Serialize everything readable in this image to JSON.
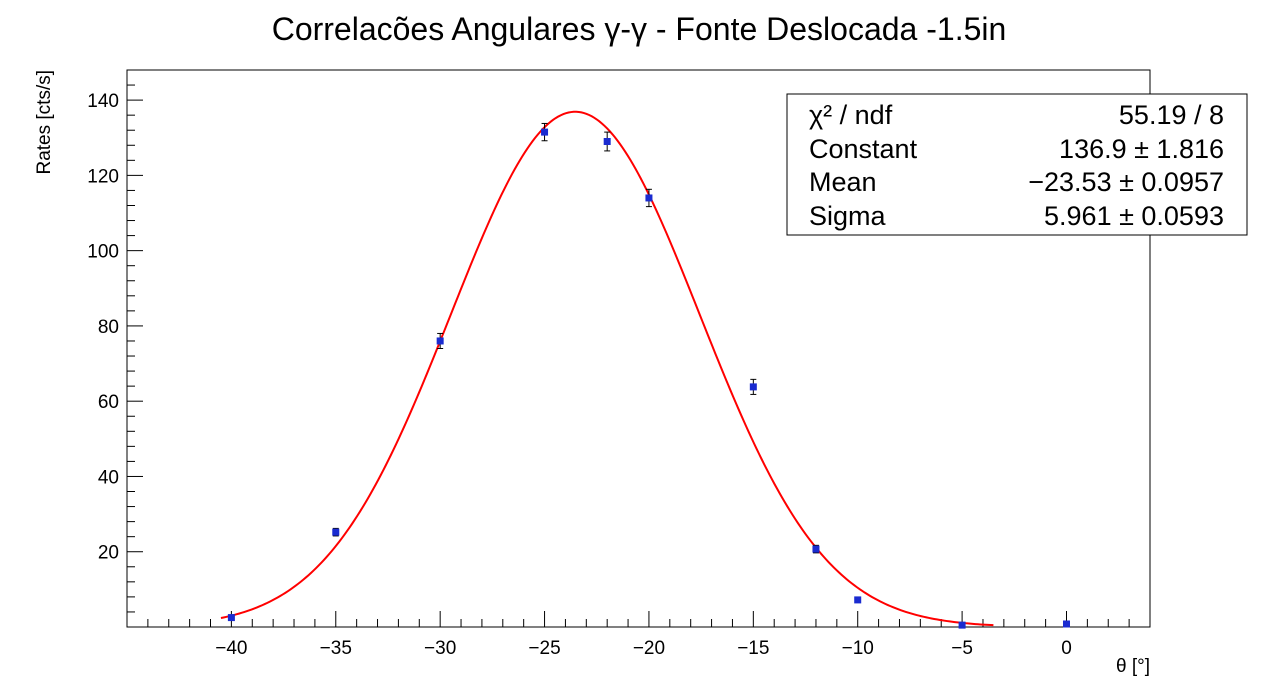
{
  "chart_data": {
    "type": "scatter",
    "title": "Correlacões Angulares γ-γ - Fonte Deslocada -1.5in",
    "xlabel": "θ [°]",
    "ylabel": "Rates [cts/s]",
    "xlim": [
      -45,
      4
    ],
    "ylim": [
      0,
      148
    ],
    "x_ticks": [
      -40,
      -35,
      -30,
      -25,
      -20,
      -15,
      -10,
      -5,
      0
    ],
    "x_tick_labels": [
      "−40",
      "−35",
      "−30",
      "−25",
      "−20",
      "−15",
      "−10",
      "−5",
      "0"
    ],
    "y_ticks": [
      20,
      40,
      60,
      80,
      100,
      120,
      140
    ],
    "y_tick_labels": [
      "20",
      "40",
      "60",
      "80",
      "100",
      "120",
      "140"
    ],
    "grid": false,
    "series": [
      {
        "kind": "points-with-errors",
        "color": "#1a2bd0",
        "x": [
          -40,
          -35,
          -30,
          -25,
          -22,
          -20,
          -15,
          -12,
          -10,
          -5,
          0
        ],
        "y": [
          2.5,
          25.2,
          76.0,
          131.5,
          129.0,
          114.0,
          63.8,
          20.7,
          7.2,
          0.5,
          0.8
        ],
        "err": [
          0.7,
          1.0,
          2.0,
          2.3,
          2.5,
          2.3,
          2.0,
          1.0,
          0.6,
          0.2,
          0.3
        ]
      },
      {
        "kind": "gaussian-fit",
        "color": "#ff0000",
        "constant": 136.9,
        "mean": -23.53,
        "sigma": 5.961,
        "x_range": [
          -40.5,
          -3.5
        ]
      }
    ],
    "stats_box": {
      "placement": "top-right",
      "rows": [
        {
          "label": "χ² / ndf",
          "value": "55.19 / 8"
        },
        {
          "label": "Constant",
          "value": "136.9 ± 1.816"
        },
        {
          "label": "Mean",
          "value": "−23.53 ± 0.0957"
        },
        {
          "label": "Sigma",
          "value": "5.961 ± 0.0593"
        }
      ]
    }
  }
}
